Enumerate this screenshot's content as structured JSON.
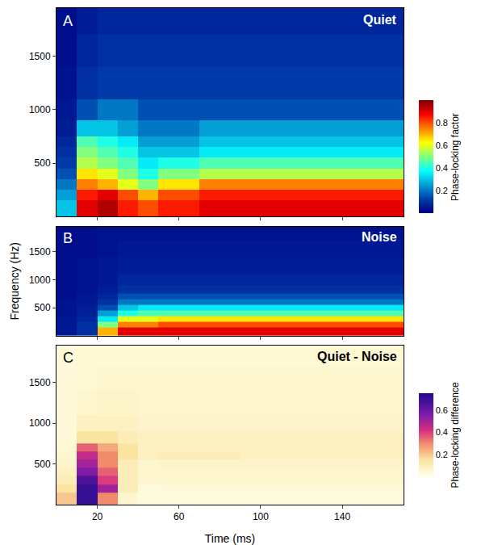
{
  "chart_data": [
    {
      "type": "heatmap",
      "panel": "A",
      "title": "Quiet",
      "tick_labels": "y",
      "x_bins": [
        0,
        10,
        20,
        30,
        40,
        50,
        70,
        90,
        110,
        130,
        150,
        170
      ],
      "y_bins": [
        0,
        150,
        250,
        350,
        450,
        550,
        650,
        750,
        900,
        1100,
        1400,
        1700,
        1950
      ],
      "xlim": [
        0,
        170
      ],
      "xticks": [
        20,
        60,
        100,
        140
      ],
      "ylim": [
        0,
        1950
      ],
      "yticks": [
        500,
        1000,
        1500
      ],
      "zlim": [
        0,
        1
      ],
      "colorbar": {
        "title": "Phase-locking factor",
        "ticks": [
          0.2,
          0.4,
          0.6,
          0.8
        ]
      },
      "z": [
        [
          0.3,
          0.9,
          0.95,
          0.85,
          0.8,
          0.85,
          0.9,
          0.9,
          0.9,
          0.9,
          0.9
        ],
        [
          0.25,
          0.85,
          0.9,
          0.8,
          0.7,
          0.8,
          0.85,
          0.85,
          0.85,
          0.85,
          0.85
        ],
        [
          0.2,
          0.75,
          0.7,
          0.6,
          0.5,
          0.65,
          0.75,
          0.75,
          0.75,
          0.75,
          0.75
        ],
        [
          0.15,
          0.65,
          0.6,
          0.5,
          0.4,
          0.5,
          0.55,
          0.55,
          0.55,
          0.55,
          0.55
        ],
        [
          0.12,
          0.55,
          0.5,
          0.45,
          0.35,
          0.4,
          0.45,
          0.45,
          0.45,
          0.45,
          0.45
        ],
        [
          0.1,
          0.5,
          0.45,
          0.4,
          0.3,
          0.3,
          0.35,
          0.35,
          0.35,
          0.35,
          0.35
        ],
        [
          0.08,
          0.45,
          0.4,
          0.35,
          0.25,
          0.25,
          0.3,
          0.3,
          0.3,
          0.3,
          0.3
        ],
        [
          0.06,
          0.3,
          0.3,
          0.25,
          0.2,
          0.2,
          0.25,
          0.25,
          0.25,
          0.25,
          0.25
        ],
        [
          0.05,
          0.15,
          0.2,
          0.2,
          0.15,
          0.15,
          0.15,
          0.15,
          0.15,
          0.15,
          0.15
        ],
        [
          0.04,
          0.1,
          0.12,
          0.12,
          0.12,
          0.12,
          0.12,
          0.12,
          0.12,
          0.12,
          0.12
        ],
        [
          0.03,
          0.08,
          0.1,
          0.1,
          0.1,
          0.1,
          0.1,
          0.1,
          0.1,
          0.1,
          0.1
        ],
        [
          0.03,
          0.06,
          0.08,
          0.08,
          0.08,
          0.08,
          0.08,
          0.08,
          0.08,
          0.08,
          0.08
        ]
      ]
    },
    {
      "type": "heatmap",
      "panel": "B",
      "title": "Noise",
      "tick_labels": "y",
      "ylabel": "Frequency (Hz)",
      "x_bins": [
        0,
        10,
        20,
        30,
        40,
        50,
        70,
        90,
        110,
        130,
        150,
        170
      ],
      "y_bins": [
        0,
        150,
        250,
        350,
        450,
        550,
        650,
        750,
        900,
        1100,
        1400,
        1700,
        1950
      ],
      "xlim": [
        0,
        170
      ],
      "xticks": [
        20,
        60,
        100,
        140
      ],
      "ylim": [
        0,
        1950
      ],
      "yticks": [
        500,
        1000,
        1500
      ],
      "zlim": [
        0,
        1
      ],
      "z": [
        [
          0.05,
          0.1,
          0.7,
          0.9,
          0.9,
          0.9,
          0.9,
          0.9,
          0.9,
          0.9,
          0.9
        ],
        [
          0.05,
          0.1,
          0.5,
          0.75,
          0.75,
          0.8,
          0.8,
          0.8,
          0.8,
          0.8,
          0.8
        ],
        [
          0.05,
          0.08,
          0.35,
          0.6,
          0.6,
          0.65,
          0.65,
          0.65,
          0.65,
          0.65,
          0.65
        ],
        [
          0.04,
          0.07,
          0.25,
          0.4,
          0.45,
          0.45,
          0.45,
          0.45,
          0.45,
          0.45,
          0.45
        ],
        [
          0.04,
          0.06,
          0.15,
          0.3,
          0.35,
          0.35,
          0.35,
          0.35,
          0.35,
          0.35,
          0.35
        ],
        [
          0.04,
          0.05,
          0.1,
          0.2,
          0.2,
          0.2,
          0.2,
          0.2,
          0.2,
          0.2,
          0.2
        ],
        [
          0.03,
          0.05,
          0.08,
          0.15,
          0.15,
          0.15,
          0.15,
          0.15,
          0.15,
          0.15,
          0.15
        ],
        [
          0.03,
          0.04,
          0.06,
          0.1,
          0.1,
          0.1,
          0.1,
          0.1,
          0.1,
          0.1,
          0.1
        ],
        [
          0.03,
          0.04,
          0.05,
          0.08,
          0.08,
          0.08,
          0.08,
          0.08,
          0.08,
          0.08,
          0.08
        ],
        [
          0.03,
          0.04,
          0.05,
          0.06,
          0.06,
          0.06,
          0.06,
          0.06,
          0.06,
          0.06,
          0.06
        ],
        [
          0.03,
          0.03,
          0.04,
          0.05,
          0.05,
          0.05,
          0.05,
          0.05,
          0.05,
          0.05,
          0.05
        ],
        [
          0.03,
          0.03,
          0.04,
          0.04,
          0.04,
          0.04,
          0.04,
          0.04,
          0.04,
          0.04,
          0.04
        ]
      ]
    },
    {
      "type": "heatmap",
      "panel": "C",
      "title": "Quiet - Noise",
      "tick_labels": true,
      "xlabel": "Time (ms)",
      "x_bins": [
        0,
        10,
        20,
        30,
        40,
        50,
        70,
        90,
        110,
        130,
        150,
        170
      ],
      "y_bins": [
        0,
        150,
        250,
        350,
        450,
        550,
        650,
        750,
        900,
        1100,
        1400,
        1700,
        1950
      ],
      "xlim": [
        0,
        170
      ],
      "xticks": [
        20,
        60,
        100,
        140
      ],
      "ylim": [
        0,
        1950
      ],
      "yticks": [
        500,
        1000,
        1500
      ],
      "zlim": [
        0,
        0.75
      ],
      "colorbar": {
        "title": "Phase-locking difference",
        "ticks": [
          0.2,
          0.4,
          0.6
        ]
      },
      "z": [
        [
          0.2,
          0.7,
          0.3,
          0.05,
          0.02,
          0.02,
          0.02,
          0.02,
          0.02,
          0.02,
          0.02
        ],
        [
          0.15,
          0.7,
          0.5,
          0.1,
          0.02,
          0.03,
          0.03,
          0.03,
          0.03,
          0.03,
          0.03
        ],
        [
          0.1,
          0.65,
          0.4,
          0.1,
          0.05,
          0.05,
          0.05,
          0.05,
          0.05,
          0.05,
          0.05
        ],
        [
          0.08,
          0.55,
          0.35,
          0.1,
          0.05,
          0.05,
          0.05,
          0.05,
          0.05,
          0.05,
          0.05
        ],
        [
          0.06,
          0.5,
          0.3,
          0.1,
          0.05,
          0.06,
          0.06,
          0.06,
          0.06,
          0.06,
          0.06
        ],
        [
          0.05,
          0.45,
          0.3,
          0.15,
          0.08,
          0.1,
          0.1,
          0.08,
          0.08,
          0.08,
          0.08
        ],
        [
          0.04,
          0.35,
          0.25,
          0.15,
          0.08,
          0.08,
          0.08,
          0.08,
          0.08,
          0.08,
          0.08
        ],
        [
          0.03,
          0.15,
          0.15,
          0.1,
          0.08,
          0.08,
          0.08,
          0.08,
          0.08,
          0.08,
          0.08
        ],
        [
          0.03,
          0.08,
          0.08,
          0.08,
          0.06,
          0.06,
          0.06,
          0.06,
          0.06,
          0.06,
          0.06
        ],
        [
          0.03,
          0.05,
          0.06,
          0.06,
          0.05,
          0.05,
          0.05,
          0.05,
          0.05,
          0.05,
          0.05
        ],
        [
          0.03,
          0.04,
          0.05,
          0.05,
          0.05,
          0.05,
          0.05,
          0.05,
          0.05,
          0.05,
          0.05
        ],
        [
          0.03,
          0.04,
          0.04,
          0.04,
          0.04,
          0.04,
          0.04,
          0.04,
          0.04,
          0.04,
          0.04
        ]
      ]
    }
  ]
}
